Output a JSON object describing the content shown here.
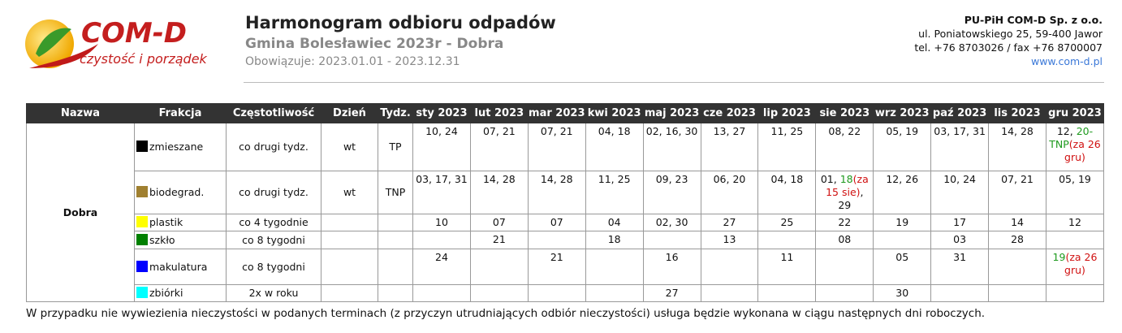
{
  "logo": {
    "name": "COM-D",
    "tagline": "czystość i porządek"
  },
  "header": {
    "title": "Harmonogram odbioru odpadów",
    "subtitle": "Gmina Bolesławiec 2023r - Dobra",
    "validity": "Obowiązuje: 2023.01.01 - 2023.12.31"
  },
  "company": {
    "name": "PU-PiH COM-D Sp. z o.o.",
    "address": "ul. Poniatowskiego 25, 59-400 Jawor",
    "phone": "tel. +76 8703026 / fax +76 8700007",
    "website": "www.com-d.pl"
  },
  "table": {
    "columns": [
      "Nazwa",
      "Frakcja",
      "Częstotliwość",
      "Dzień",
      "Tydz.",
      "sty 2023",
      "lut 2023",
      "mar 2023",
      "kwi 2023",
      "maj 2023",
      "cze 2023",
      "lip 2023",
      "sie 2023",
      "wrz 2023",
      "paź 2023",
      "lis 2023",
      "gru 2023"
    ],
    "area": "Dobra",
    "rows": [
      {
        "color": "#000000",
        "fraction": "zmieszane",
        "frequency": "co drugi tydz.",
        "day": "wt",
        "week": "TP",
        "dates": [
          "10, 24",
          "07, 21",
          "07, 21",
          "04, 18",
          "02, 16, 30",
          "13, 27",
          "11, 25",
          "08, 22",
          "05, 19",
          "03, 17, 31",
          "14, 28",
          [
            {
              "text": "12, "
            },
            {
              "text": "20-TNP",
              "color": "#1e9a1e"
            },
            {
              "text": "(za 26 gru)",
              "color": "#d01010"
            }
          ]
        ]
      },
      {
        "color": "#a08030",
        "fraction": "biodegrad.",
        "frequency": "co drugi tydz.",
        "day": "wt",
        "week": "TNP",
        "dates": [
          "03, 17, 31",
          "14, 28",
          "14, 28",
          "11, 25",
          "09, 23",
          "06, 20",
          "04, 18",
          [
            {
              "text": "01, "
            },
            {
              "text": "18",
              "color": "#1e9a1e"
            },
            {
              "text": "(za 15 sie)",
              "color": "#d01010"
            },
            {
              "text": ", 29"
            }
          ],
          "12, 26",
          "10, 24",
          "07, 21",
          "05, 19"
        ]
      },
      {
        "color": "#ffff00",
        "fraction": "plastik",
        "frequency": "co 4 tygodnie",
        "day": null,
        "week": null,
        "dates": [
          "10",
          "07",
          "07",
          "04",
          "02, 30",
          "27",
          "25",
          "22",
          "19",
          "17",
          "14",
          "12"
        ]
      },
      {
        "color": "#008000",
        "fraction": "szkło",
        "frequency": "co 8 tygodni",
        "day": null,
        "week": null,
        "dates": [
          null,
          "21",
          null,
          "18",
          null,
          "13",
          null,
          "08",
          null,
          "03",
          "28",
          null
        ]
      },
      {
        "color": "#0000ff",
        "fraction": "makulatura",
        "frequency": "co 8 tygodni",
        "day": null,
        "week": null,
        "dates": [
          "24",
          null,
          "21",
          null,
          "16",
          null,
          "11",
          null,
          "05",
          "31",
          null,
          [
            {
              "text": "19",
              "color": "#1e9a1e"
            },
            {
              "text": "(za 26 gru)",
              "color": "#d01010"
            }
          ]
        ]
      },
      {
        "color": "#00ffff",
        "fraction": "zbiórki",
        "frequency": "2x w roku",
        "day": null,
        "week": null,
        "dates": [
          null,
          null,
          null,
          null,
          "27",
          null,
          null,
          null,
          "30",
          null,
          null,
          null
        ]
      }
    ]
  },
  "footer": "W przypadku nie wywiezienia nieczystości w podanych terminach (z przyczyn utrudniających odbiór nieczystości) usługa będzie wykonana w ciągu następnych dni roboczych."
}
